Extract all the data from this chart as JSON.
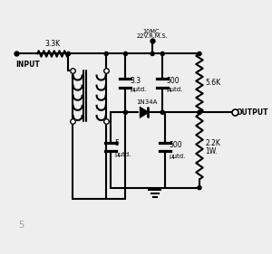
{
  "bg_color": "#eeeeee",
  "line_color": "#000000",
  "lw": 1.5,
  "labels": {
    "input": "INPUT",
    "output": "OUTPUT",
    "resistor1": "3.3K",
    "voltage_line1": "22V.R.M.S.",
    "voltage_line2": "10MC.",
    "cap1_val": "3.3",
    "cap1_unit": "μμtd.",
    "cap2_val": "500",
    "cap2_unit": "μμtd.",
    "resistor2": "5.6K",
    "diode": "1N34A",
    "cap3_val": "5",
    "cap3_unit": "μμtd.",
    "cap4_val": "500",
    "cap4_unit": "μμtd.",
    "resistor3_line1": "2.2K",
    "resistor3_line2": "1W.",
    "fig_num": "5"
  }
}
